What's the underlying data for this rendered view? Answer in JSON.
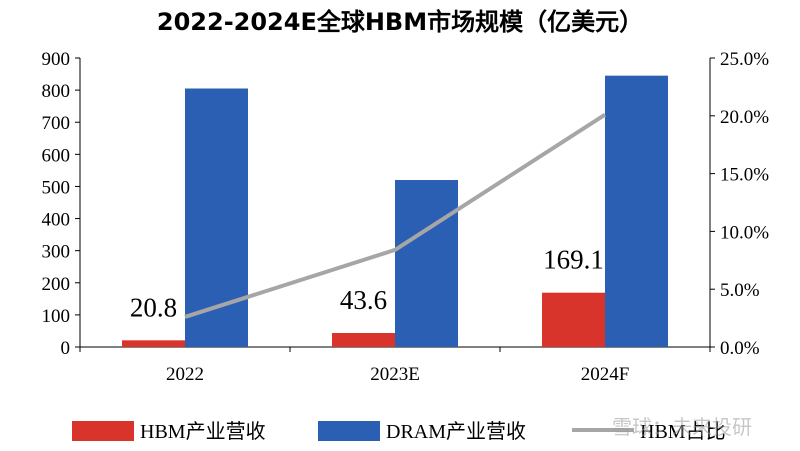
{
  "watermark": "雪球：未来投研",
  "chart_data": {
    "type": "bar",
    "title": "2022-2024E全球HBM市场规模（亿美元）",
    "categories": [
      "2022",
      "2023E",
      "2024F"
    ],
    "series": [
      {
        "name": "HBM产业营收",
        "kind": "bar",
        "axis": "left",
        "color": "#d9342b",
        "values": [
          20.8,
          43.6,
          169.1
        ],
        "labels": [
          "20.8",
          "43.6",
          "169.1"
        ]
      },
      {
        "name": "DRAM产业营收",
        "kind": "bar",
        "axis": "left",
        "color": "#2b5fb4",
        "values": [
          805,
          520,
          845
        ]
      },
      {
        "name": "HBM占比",
        "kind": "line",
        "axis": "right",
        "color": "#a6a6a6",
        "values": [
          0.026,
          0.084,
          0.201
        ]
      }
    ],
    "y_left": {
      "min": 0,
      "max": 900,
      "ticks": [
        "0",
        "100",
        "200",
        "300",
        "400",
        "500",
        "600",
        "700",
        "800",
        "900"
      ]
    },
    "y_right": {
      "min": 0,
      "max": 0.25,
      "ticks": [
        "0.0%",
        "5.0%",
        "10.0%",
        "15.0%",
        "20.0%",
        "25.0%"
      ]
    },
    "legend_position": "bottom",
    "grid": false
  }
}
